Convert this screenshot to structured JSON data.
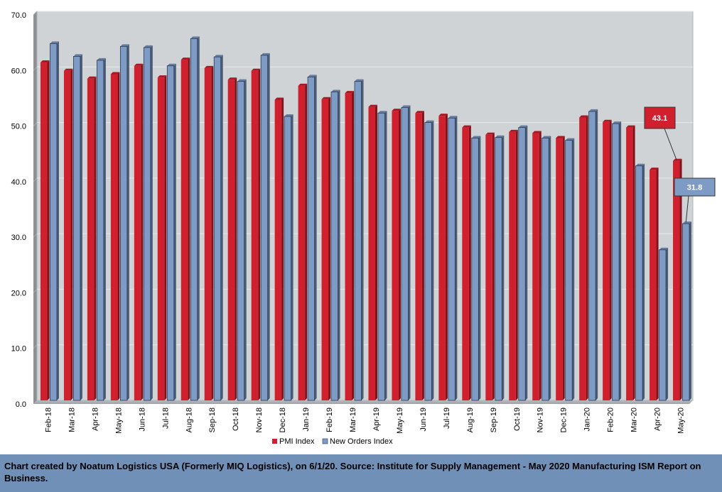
{
  "chart_data": {
    "type": "bar",
    "categories": [
      "Feb-18",
      "Mar-18",
      "Apr-18",
      "May-18",
      "Jun-18",
      "Jul-18",
      "Aug-18",
      "Sep-18",
      "Oct-18",
      "Nov-18",
      "Dec-18",
      "Jan-19",
      "Feb-19",
      "Mar-19",
      "Apr-19",
      "May-19",
      "Jun-19",
      "Jul-19",
      "Aug-19",
      "Sep-19",
      "Oct-19",
      "Nov-19",
      "Dec-19",
      "Jan-20",
      "Feb-20",
      "Mar-20",
      "Apr-20",
      "May-20"
    ],
    "series": [
      {
        "name": "PMI Index",
        "color": "#d0202e",
        "values": [
          60.8,
          59.3,
          57.9,
          58.7,
          60.2,
          58.1,
          61.3,
          59.8,
          57.7,
          59.3,
          54.1,
          56.6,
          54.2,
          55.3,
          52.8,
          52.1,
          51.7,
          51.2,
          49.1,
          47.8,
          48.3,
          48.1,
          47.2,
          50.9,
          50.1,
          49.1,
          41.5,
          43.1
        ]
      },
      {
        "name": "New Orders Index",
        "color": "#7e9bc5",
        "values": [
          64.2,
          61.9,
          61.2,
          63.7,
          63.5,
          60.2,
          65.1,
          61.8,
          57.4,
          62.1,
          51.1,
          58.2,
          55.5,
          57.4,
          51.7,
          52.7,
          50.0,
          50.8,
          47.2,
          47.3,
          49.1,
          47.2,
          46.8,
          52.0,
          49.8,
          42.2,
          27.1,
          31.8
        ]
      }
    ],
    "ylim": [
      0,
      70
    ],
    "yticks": [
      "0.0",
      "10.0",
      "20.0",
      "30.0",
      "40.0",
      "50.0",
      "60.0",
      "70.0"
    ],
    "grid": true,
    "legend_position": "bottom",
    "annotations": [
      {
        "series": "PMI Index",
        "category": "May-20",
        "text": "43.1"
      },
      {
        "series": "New Orders Index",
        "category": "May-20",
        "text": "31.8"
      }
    ]
  },
  "footer": {
    "text": "Chart created by Noatum Logistics USA (Formerly MIQ Logistics), on 6/1/20. Source: Institute for Supply Management - May 2020 Manufacturing ISM Report on Business."
  }
}
